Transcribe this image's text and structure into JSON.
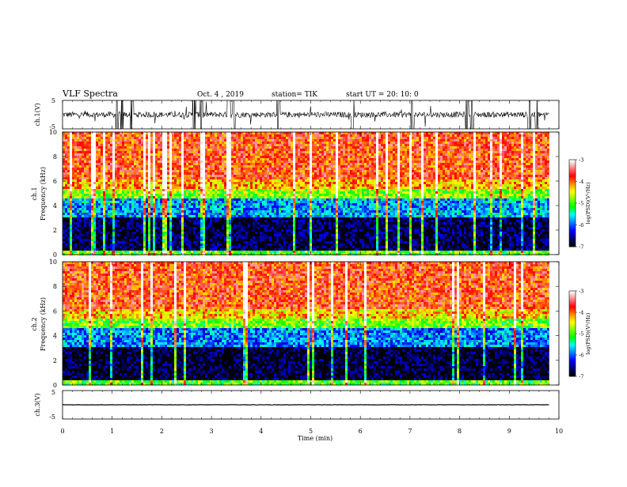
{
  "header": {
    "title": "VLF Spectra",
    "date": "Oct. 4 , 2019",
    "station": "station= TIK",
    "start_time": "start UT = 20: 10: 0"
  },
  "panels": {
    "ch1_wave": {
      "ylabel": "ch.1(V)",
      "ytick_top": "5",
      "ytick_bottom": "-5"
    },
    "ch1_spec": {
      "ylabel_line1": "ch.1",
      "ylabel_line2": "Frequency (kHz)"
    },
    "ch2_spec": {
      "ylabel_line1": "ch.2",
      "ylabel_line2": "Frequency (kHz)"
    },
    "ch3_wave": {
      "ylabel": "ch.3(V)",
      "ytick_top": "5",
      "ytick_bottom": "-5"
    }
  },
  "colorbar": {
    "label": "log(PSD)(V²/Hz)",
    "ticks": [
      "-3",
      "-4",
      "-5",
      "-6",
      "-7"
    ],
    "colors": [
      "#ffffff",
      "#ff8080",
      "#ff0000",
      "#ff8c00",
      "#ffff00",
      "#80ff00",
      "#00ff00",
      "#00ffff",
      "#0080ff",
      "#0000ff",
      "#000080",
      "#000000"
    ]
  },
  "xaxis": {
    "label": "Time (min)",
    "ticks": [
      "0",
      "1",
      "2",
      "3",
      "4",
      "5",
      "6",
      "7",
      "8",
      "9",
      "10"
    ]
  },
  "chart_data": [
    {
      "type": "line",
      "panel": "ch.1 waveform",
      "ylabel": "ch.1(V)",
      "ylim": [
        -5,
        5
      ],
      "xlim": [
        0,
        10
      ],
      "data_end_min": 9.8,
      "mean_value": 0,
      "noise_amplitude": 1,
      "impulse_peak_times_min": [
        1.1,
        1.2,
        1.4,
        2.65,
        2.8,
        3.35,
        3.45,
        4.35,
        5.85,
        7.05,
        8.15,
        8.25,
        9.4,
        9.55
      ]
    },
    {
      "type": "heatmap",
      "panel": "ch.1 spectrogram",
      "ylabel": "Frequency (kHz)",
      "yticks": [
        "0",
        "2",
        "4",
        "6",
        "8",
        "10"
      ],
      "xlim": [
        0,
        10
      ],
      "ylim": [
        0,
        10
      ],
      "data_end_min": 9.8,
      "clim": [
        -7,
        -3
      ],
      "frequency_bands_khz": [
        {
          "range": [
            0,
            0.4
          ],
          "log_psd": -5.0
        },
        {
          "range": [
            0.4,
            3.0
          ],
          "log_psd": -6.8
        },
        {
          "range": [
            3.0,
            4.6
          ],
          "log_psd": -5.8
        },
        {
          "range": [
            4.6,
            5.4
          ],
          "log_psd": -4.8
        },
        {
          "range": [
            5.4,
            6.2
          ],
          "log_psd": -4.2
        },
        {
          "range": [
            6.2,
            10
          ],
          "log_psd": -3.8
        }
      ]
    },
    {
      "type": "heatmap",
      "panel": "ch.2 spectrogram",
      "ylabel": "Frequency (kHz)",
      "yticks": [
        "0",
        "2",
        "4",
        "6",
        "8",
        "10"
      ],
      "xlim": [
        0,
        10
      ],
      "ylim": [
        0,
        10
      ],
      "data_end_min": 9.8,
      "clim": [
        -7,
        -3
      ],
      "frequency_bands_khz": [
        {
          "range": [
            0,
            0.4
          ],
          "log_psd": -5.0
        },
        {
          "range": [
            0.4,
            3.0
          ],
          "log_psd": -6.9
        },
        {
          "range": [
            3.0,
            4.6
          ],
          "log_psd": -5.9
        },
        {
          "range": [
            4.6,
            5.4
          ],
          "log_psd": -4.9
        },
        {
          "range": [
            5.4,
            6.2
          ],
          "log_psd": -4.3
        },
        {
          "range": [
            6.2,
            10
          ],
          "log_psd": -3.8
        }
      ]
    },
    {
      "type": "line",
      "panel": "ch.3 waveform",
      "ylabel": "ch.3(V)",
      "ylim": [
        -5,
        5
      ],
      "xlim": [
        0,
        10
      ],
      "data_end_min": 9.8,
      "mean_value": 0,
      "noise_amplitude": 0.05
    }
  ]
}
